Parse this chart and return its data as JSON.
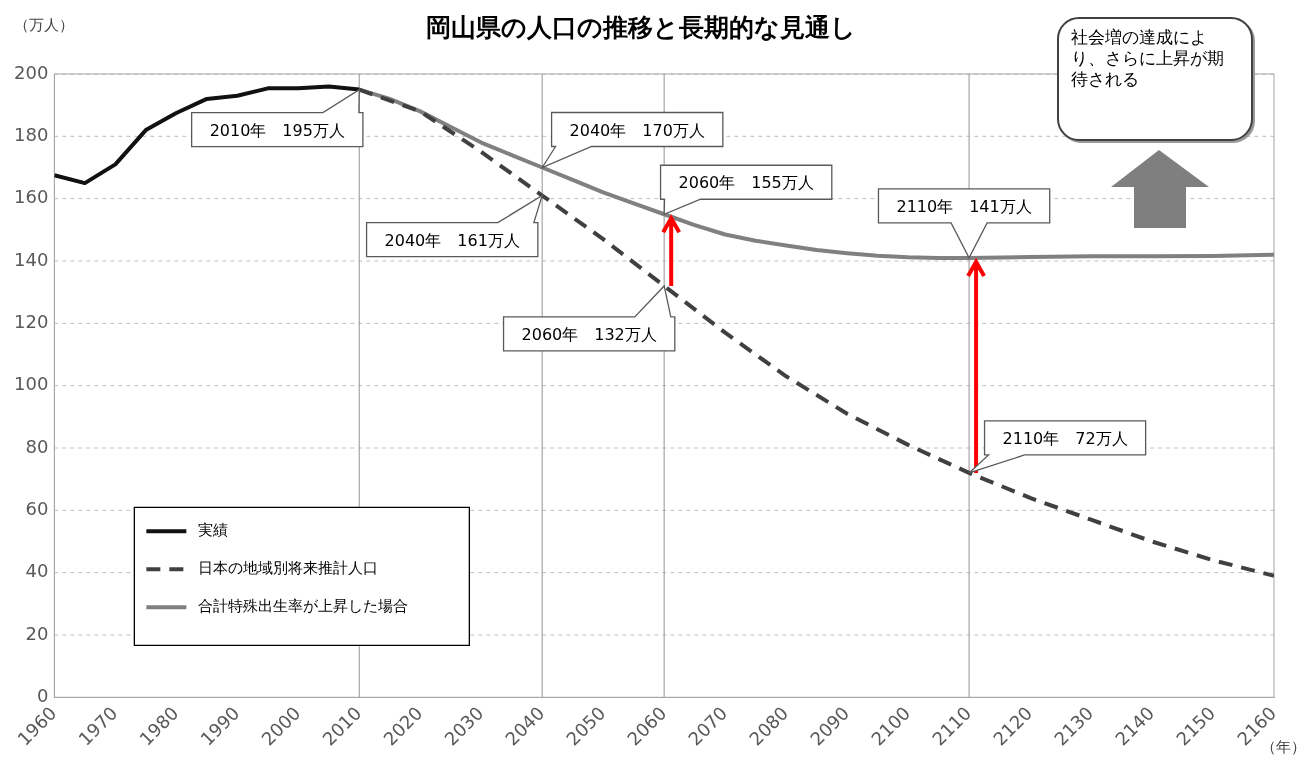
{
  "chart_data": {
    "type": "line",
    "title": "岡山県の人口の推移と長期的な見通し",
    "ylabel": "（万人）",
    "xlabel": "（年）",
    "xlim": [
      1960,
      2160
    ],
    "xticks": [
      1960,
      1970,
      1980,
      1990,
      2000,
      2010,
      2020,
      2030,
      2040,
      2050,
      2060,
      2070,
      2080,
      2090,
      2100,
      2110,
      2120,
      2130,
      2140,
      2150,
      2160
    ],
    "ylim": [
      0,
      200
    ],
    "yticks": [
      0,
      20,
      40,
      60,
      80,
      100,
      120,
      140,
      160,
      180,
      200
    ],
    "grid": "y",
    "legend": "bottom left",
    "marker": "none",
    "line_style": "solid",
    "series": [
      {
        "name": "実績",
        "color": "#111111",
        "x": [
          1960,
          1965,
          1970,
          1975,
          1980,
          1985,
          1990,
          1995,
          2000,
          2005,
          2010
        ],
        "values": [
          167.5,
          165,
          171,
          182,
          187.5,
          192,
          193,
          195.4,
          195.4,
          196,
          195
        ]
      },
      {
        "name": "日本の地域別将来推計人口",
        "color": "#404040",
        "line_style": "dashed",
        "x": [
          2010,
          2020,
          2030,
          2040,
          2050,
          2060,
          2070,
          2080,
          2090,
          2100,
          2110,
          2120,
          2130,
          2140,
          2150,
          2160
        ],
        "values": [
          195,
          188,
          175,
          161,
          147,
          132,
          117,
          103,
          91,
          81,
          72,
          64,
          57,
          50,
          44,
          39
        ]
      },
      {
        "name": "合計特殊出生率が上昇した場合",
        "color": "#808080",
        "x": [
          2010,
          2015,
          2020,
          2025,
          2030,
          2035,
          2040,
          2045,
          2050,
          2055,
          2060,
          2065,
          2070,
          2075,
          2080,
          2085,
          2090,
          2095,
          2100,
          2105,
          2110,
          2120,
          2130,
          2140,
          2150,
          2160
        ],
        "values": [
          195,
          192,
          188,
          183,
          178,
          174,
          170,
          166,
          162,
          158.5,
          155,
          151.5,
          148.5,
          146.5,
          145,
          143.5,
          142.5,
          141.7,
          141.2,
          141,
          141,
          141.3,
          141.5,
          141.5,
          141.6,
          142
        ]
      }
    ],
    "ref_lines": [
      {
        "axis": "x",
        "value": 2010,
        "color": "#a6a6a6"
      },
      {
        "axis": "x",
        "value": 2040,
        "color": "#a6a6a6"
      },
      {
        "axis": "x",
        "value": 2060,
        "color": "#a6a6a6"
      },
      {
        "axis": "x",
        "value": 2110,
        "color": "#a6a6a6"
      }
    ],
    "annotations": [
      {
        "text": "2010年　195万人",
        "x": 2010,
        "y": 195
      },
      {
        "text": "2040年　170万人",
        "x": 2040,
        "y": 170
      },
      {
        "text": "2040年　161万人",
        "x": 2040,
        "y": 161
      },
      {
        "text": "2060年　155万人",
        "x": 2060,
        "y": 155
      },
      {
        "text": "2060年　132万人",
        "x": 2060,
        "y": 132
      },
      {
        "text": "2110年　141万人",
        "x": 2110,
        "y": 141
      },
      {
        "text": "2110年　72万人",
        "x": 2110,
        "y": 72
      },
      "社会増の達成により、さらに上昇が期待される"
    ]
  }
}
